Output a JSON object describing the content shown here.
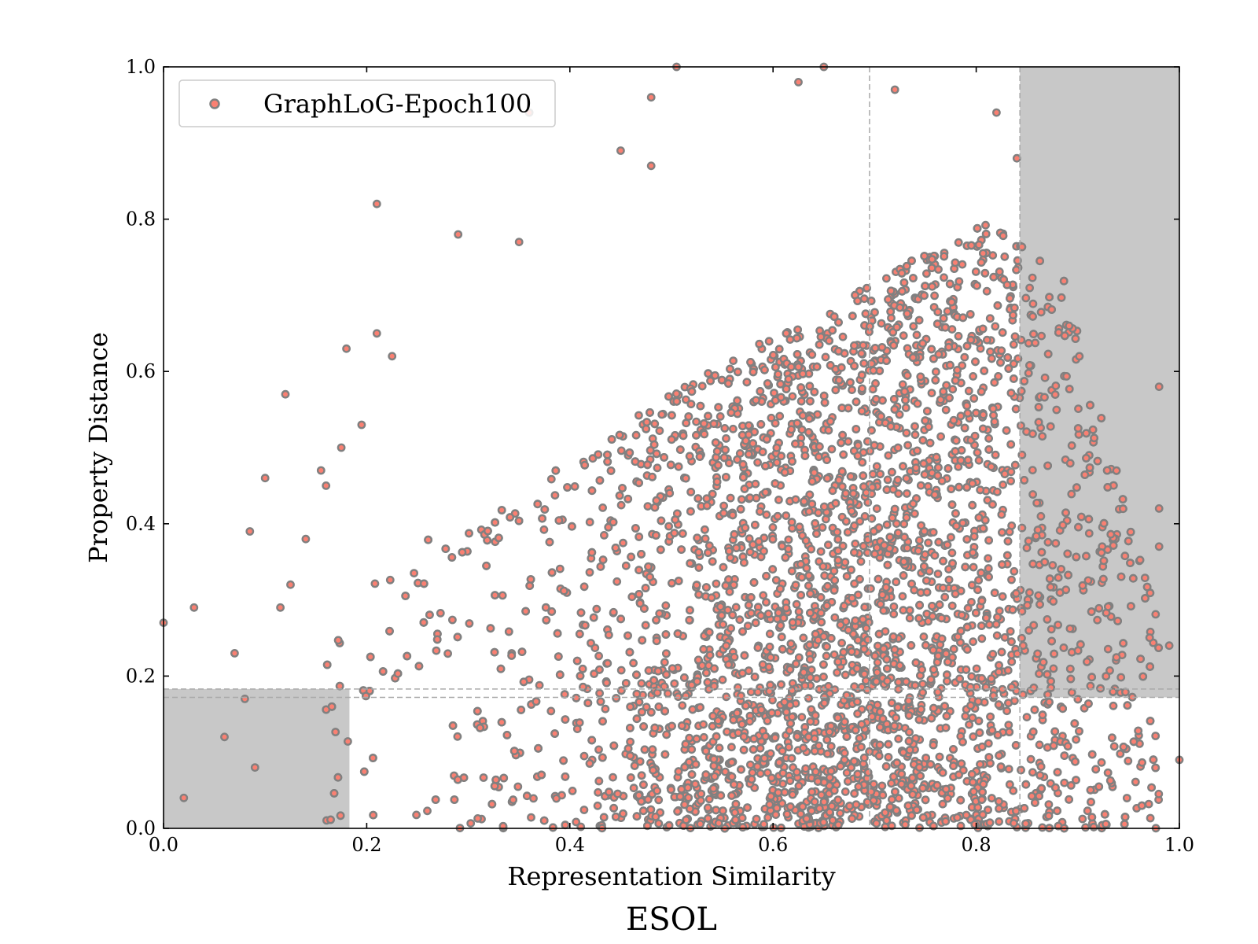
{
  "chart_data": {
    "type": "scatter",
    "title": "ESOL",
    "xlabel": "Representation Similarity",
    "ylabel": "Property Distance",
    "xlim": [
      0.0,
      1.0
    ],
    "ylim": [
      0.0,
      1.0
    ],
    "xticks": [
      "0.0",
      "0.2",
      "0.4",
      "0.6",
      "0.8",
      "1.0"
    ],
    "yticks": [
      "0.0",
      "0.2",
      "0.4",
      "0.6",
      "0.8",
      "1.0"
    ],
    "grid": false,
    "legend_position": "upper-left",
    "series": [
      {
        "name": "GraphLoG-Epoch100",
        "marker_fill": "#fa8072",
        "marker_edge": "#808080",
        "sample_points": [
          [
            0.0,
            0.27
          ],
          [
            0.02,
            0.04
          ],
          [
            0.03,
            0.29
          ],
          [
            0.06,
            0.12
          ],
          [
            0.07,
            0.23
          ],
          [
            0.08,
            0.17
          ],
          [
            0.085,
            0.39
          ],
          [
            0.09,
            0.08
          ],
          [
            0.1,
            0.46
          ],
          [
            0.115,
            0.29
          ],
          [
            0.12,
            0.57
          ],
          [
            0.125,
            0.32
          ],
          [
            0.14,
            0.38
          ],
          [
            0.155,
            0.47
          ],
          [
            0.16,
            0.45
          ],
          [
            0.175,
            0.5
          ],
          [
            0.18,
            0.63
          ],
          [
            0.195,
            0.53
          ],
          [
            0.21,
            0.82
          ],
          [
            0.21,
            0.65
          ],
          [
            0.225,
            0.62
          ],
          [
            0.29,
            0.78
          ],
          [
            0.35,
            0.77
          ],
          [
            0.36,
            0.94
          ],
          [
            0.45,
            0.89
          ],
          [
            0.48,
            0.96
          ],
          [
            0.48,
            0.87
          ],
          [
            0.505,
            1.0
          ],
          [
            0.625,
            0.98
          ],
          [
            0.65,
            1.0
          ],
          [
            0.72,
            0.97
          ],
          [
            0.82,
            0.94
          ],
          [
            0.84,
            0.88
          ],
          [
            0.98,
            0.58
          ],
          [
            0.98,
            0.42
          ],
          [
            0.98,
            0.37
          ],
          [
            0.99,
            0.24
          ],
          [
            1.0,
            0.09
          ]
        ]
      }
    ],
    "reference_lines": {
      "vertical": [
        0.695,
        0.843
      ],
      "horizontal": [
        0.172,
        0.183
      ]
    },
    "shaded_regions": [
      {
        "x": [
          0.0,
          0.183
        ],
        "y": [
          0.0,
          0.183
        ]
      },
      {
        "x": [
          0.843,
          1.0
        ],
        "y": [
          0.172,
          1.0
        ]
      }
    ],
    "colors": {
      "shade": "#c8c8c8",
      "reference_line": "#a9a9a9"
    }
  }
}
